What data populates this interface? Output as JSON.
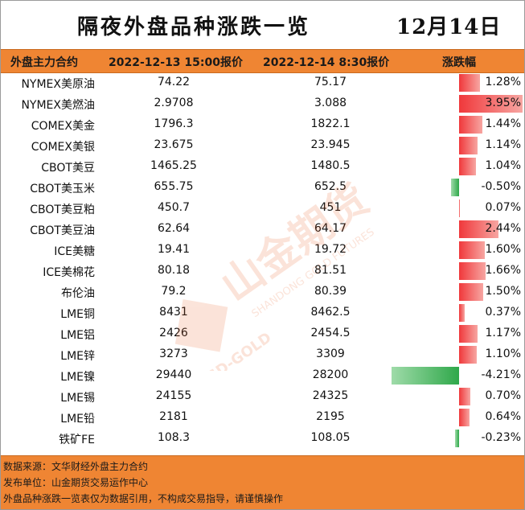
{
  "title": "隔夜外盘品种涨跌一览",
  "date": "12月14日",
  "header": {
    "col_name": "外盘主力合约",
    "col_prev": "2022-12-13 15:00报价",
    "col_curr": "2022-12-14 8:30报价",
    "col_change": "涨跌幅"
  },
  "colors": {
    "header_bg": "#ef8533",
    "up": "#f0383b",
    "down": "#2fa84a"
  },
  "rows": [
    {
      "name": "NYMEX美原油",
      "prev": "74.22",
      "curr": "75.17",
      "change": "1.28%",
      "pct": 1.28
    },
    {
      "name": "NYMEX美燃油",
      "prev": "2.9708",
      "curr": "3.088",
      "change": "3.95%",
      "pct": 3.95
    },
    {
      "name": "COMEX美金",
      "prev": "1796.3",
      "curr": "1822.1",
      "change": "1.44%",
      "pct": 1.44
    },
    {
      "name": "COMEX美银",
      "prev": "23.675",
      "curr": "23.945",
      "change": "1.14%",
      "pct": 1.14
    },
    {
      "name": "CBOT美豆",
      "prev": "1465.25",
      "curr": "1480.5",
      "change": "1.04%",
      "pct": 1.04
    },
    {
      "name": "CBOT美玉米",
      "prev": "655.75",
      "curr": "652.5",
      "change": "-0.50%",
      "pct": -0.5
    },
    {
      "name": "CBOT美豆粕",
      "prev": "450.7",
      "curr": "451",
      "change": "0.07%",
      "pct": 0.07
    },
    {
      "name": "CBOT美豆油",
      "prev": "62.64",
      "curr": "64.17",
      "change": "2.44%",
      "pct": 2.44
    },
    {
      "name": "ICE美糖",
      "prev": "19.41",
      "curr": "19.72",
      "change": "1.60%",
      "pct": 1.6
    },
    {
      "name": "ICE美棉花",
      "prev": "80.18",
      "curr": "81.51",
      "change": "1.66%",
      "pct": 1.66
    },
    {
      "name": "布伦油",
      "prev": "79.2",
      "curr": "80.39",
      "change": "1.50%",
      "pct": 1.5
    },
    {
      "name": "LME铜",
      "prev": "8431",
      "curr": "8462.5",
      "change": "0.37%",
      "pct": 0.37
    },
    {
      "name": "LME铝",
      "prev": "2426",
      "curr": "2454.5",
      "change": "1.17%",
      "pct": 1.17
    },
    {
      "name": "LME锌",
      "prev": "3273",
      "curr": "3309",
      "change": "1.10%",
      "pct": 1.1
    },
    {
      "name": "LME镍",
      "prev": "29440",
      "curr": "28200",
      "change": "-4.21%",
      "pct": -4.21
    },
    {
      "name": "LME锡",
      "prev": "24155",
      "curr": "24325",
      "change": "0.70%",
      "pct": 0.7
    },
    {
      "name": "LME铅",
      "prev": "2181",
      "curr": "2195",
      "change": "0.64%",
      "pct": 0.64
    },
    {
      "name": "铁矿FE",
      "prev": "108.3",
      "curr": "108.05",
      "change": "-0.23%",
      "pct": -0.23
    }
  ],
  "watermark": {
    "brand": "山金期货",
    "sub1": "SHANDONG GOLD FUTURES",
    "sub2": "SD-GOLD"
  },
  "footer": {
    "source": "数据来源：文华财经外盘主力合约",
    "publisher": "发布单位：山金期货交易运作中心",
    "disclaimer": "外盘品种涨跌一览表仅为数据引用，不构成交易指导，请谨慎操作"
  }
}
